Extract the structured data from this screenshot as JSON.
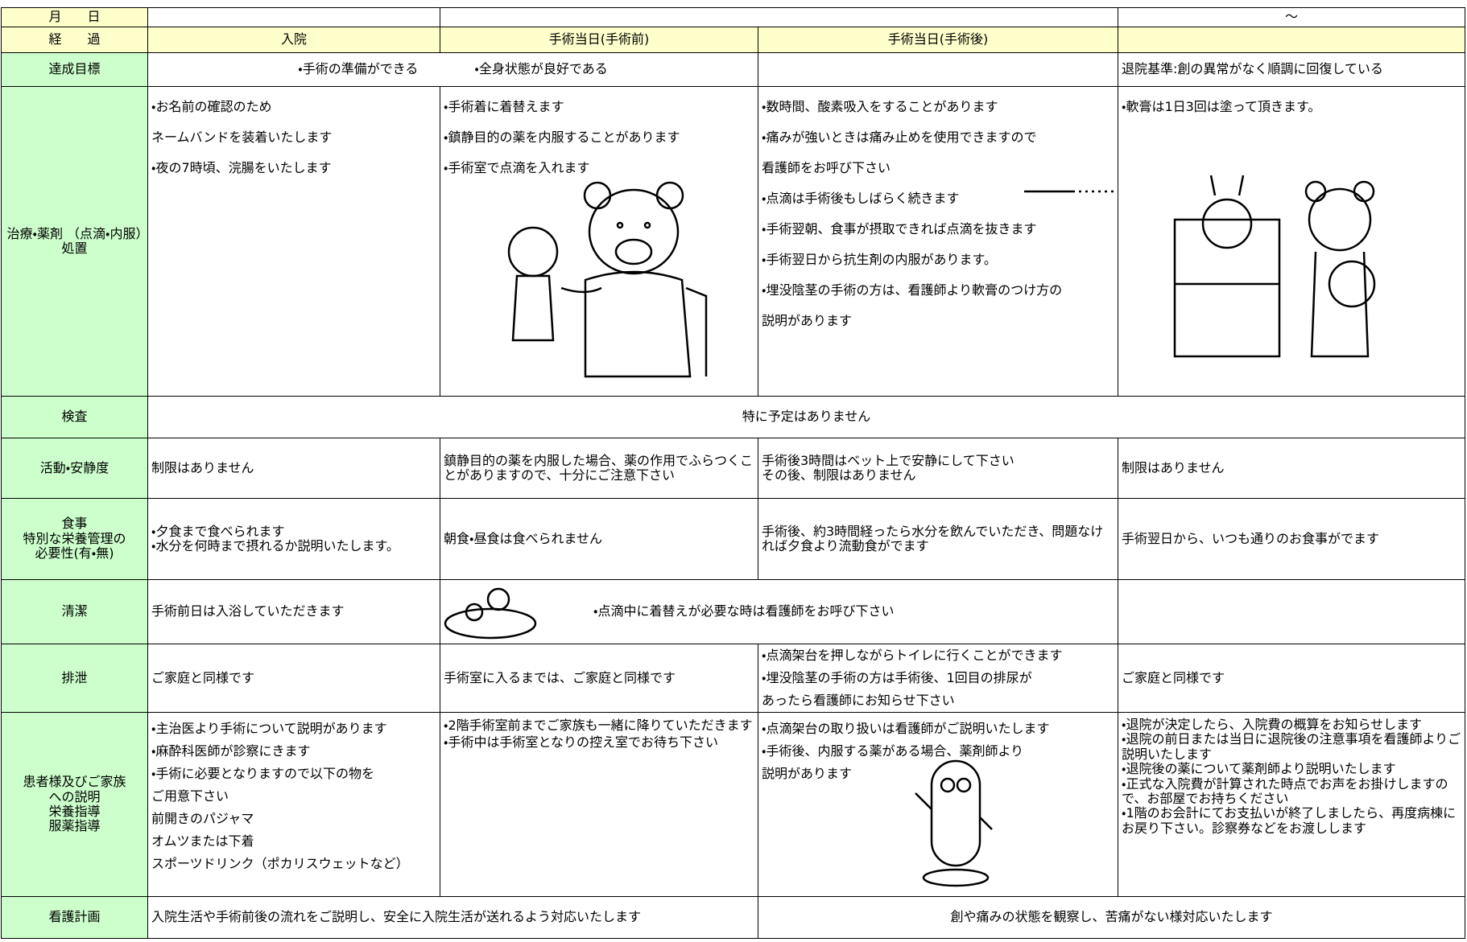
{
  "header": {
    "date_label": "月　　日",
    "tilde": "～",
    "progress_label": "経　　過",
    "columns": [
      "入院",
      "手術当日(手術前)",
      "手術当日(手術後)"
    ]
  },
  "goal": {
    "label": "達成目標",
    "before": "・手術の準備ができる",
    "general": "・全身状態が良好である",
    "discharge": "退院基準:創の異常がなく順調に回復している"
  },
  "treatment": {
    "label": "治療・薬剤 （点滴・内服）処置",
    "cells": [
      [
        "・お名前の確認のため",
        "ネームバンドを装着いたします",
        "・夜の7時頃、浣腸をいたします"
      ],
      [
        "・手術着に着替えます",
        "・鎮静目的の薬を内服することがあります",
        "・手術室で点滴を入れます"
      ],
      [
        "・数時間、酸素吸入をすることがあります",
        "・痛みが強いときは痛み止めを使用できますので",
        "看護師をお呼び下さい",
        "・点滴は手術後もしばらく続きます",
        "・手術翌朝、食事が摂取できれば点滴を抜きます",
        "・手術翌日から抗生剤の内服があります。",
        "・埋没陰茎の手術の方は、看護師より軟膏のつけ方の",
        "説明があります"
      ],
      [
        "・軟膏は1日3回は塗って頂きます。"
      ]
    ]
  },
  "exam": {
    "label": "検査",
    "text": "特に予定はありません"
  },
  "activity": {
    "label": "活動・安静度",
    "cells": [
      [
        "制限はありません"
      ],
      [
        "鎮静目的の薬を内服した場合、薬の作用でふらつくことがありますので、十分にご注意下さい"
      ],
      [
        "手術後3時間はベット上で安静にして下さい",
        "その後、制限はありません"
      ],
      [
        "制限はありません"
      ]
    ]
  },
  "meal": {
    "label": [
      "食事",
      "特別な栄養管理の",
      "必要性(有・無)"
    ],
    "cells": [
      [
        "・夕食まで食べられます",
        "・水分を何時まで摂れるか説明いたします。"
      ],
      [
        "朝食・昼食は食べられません"
      ],
      [
        "手術後、約3時間経ったら水分を飲んでいただき、問題なければ夕食より流動食がでます"
      ],
      [
        "手術翌日から、いつも通りのお食事がでます"
      ]
    ]
  },
  "cleanliness": {
    "label": "清潔",
    "cells": [
      [
        "手術前日は入浴していただきます"
      ],
      [
        "・点滴中に着替えが必要な時は看護師をお呼び下さい"
      ]
    ]
  },
  "excretion": {
    "label": "排泄",
    "cells": [
      [
        "ご家庭と同様です"
      ],
      [
        "手術室に入るまでは、ご家庭と同様です"
      ],
      [
        "・点滴架台を押しながらトイレに行くことができます",
        "・埋没陰茎の手術の方は手術後、1回目の排尿が",
        "あったら看護師にお知らせ下さい"
      ],
      [
        "ご家庭と同様です"
      ]
    ]
  },
  "explanation": {
    "label": [
      "患者様及びご家族",
      "への説明",
      "栄養指導",
      "服薬指導"
    ],
    "cells": [
      [
        "・主治医より手術について説明があります",
        "・麻酔科医師が診察にきます",
        "・手術に必要となりますので以下の物を",
        "ご用意下さい",
        "前開きのパジャマ",
        "オムツまたは下着",
        "スポーツドリンク（ポカリスウェットなど）"
      ],
      [
        "・2階手術室前までご家族も一緒に降りていただきます",
        "・手術中は手術室となりの控え室でお待ち下さい"
      ],
      [
        "・点滴架台の取り扱いは看護師がご説明いたします",
        "・手術後、内服する薬がある場合、薬剤師より",
        "説明があります"
      ],
      [
        "・退院が決定したら、入院費の概算をお知らせします",
        "・退院の前日または当日に退院後の注意事項を看護師よりご説明いたします",
        "・退院後の薬について薬剤師より説明いたします",
        "・正式な入院費が計算された時点でお声をお掛けしますので、お部屋でお持ちください",
        "・1階のお会計にてお支払いが終了しましたら、再度病棟にお戻り下さい。診察券などをお渡しします"
      ]
    ]
  },
  "nursing": {
    "label": "看護計画",
    "cells": [
      [
        "入院生活や手術前後の流れをご説明し、安全に入院生活が送れるよう対応いたします"
      ],
      [
        "創や痛みの状態を観察し、苦痛がない様対応いたします"
      ]
    ]
  }
}
